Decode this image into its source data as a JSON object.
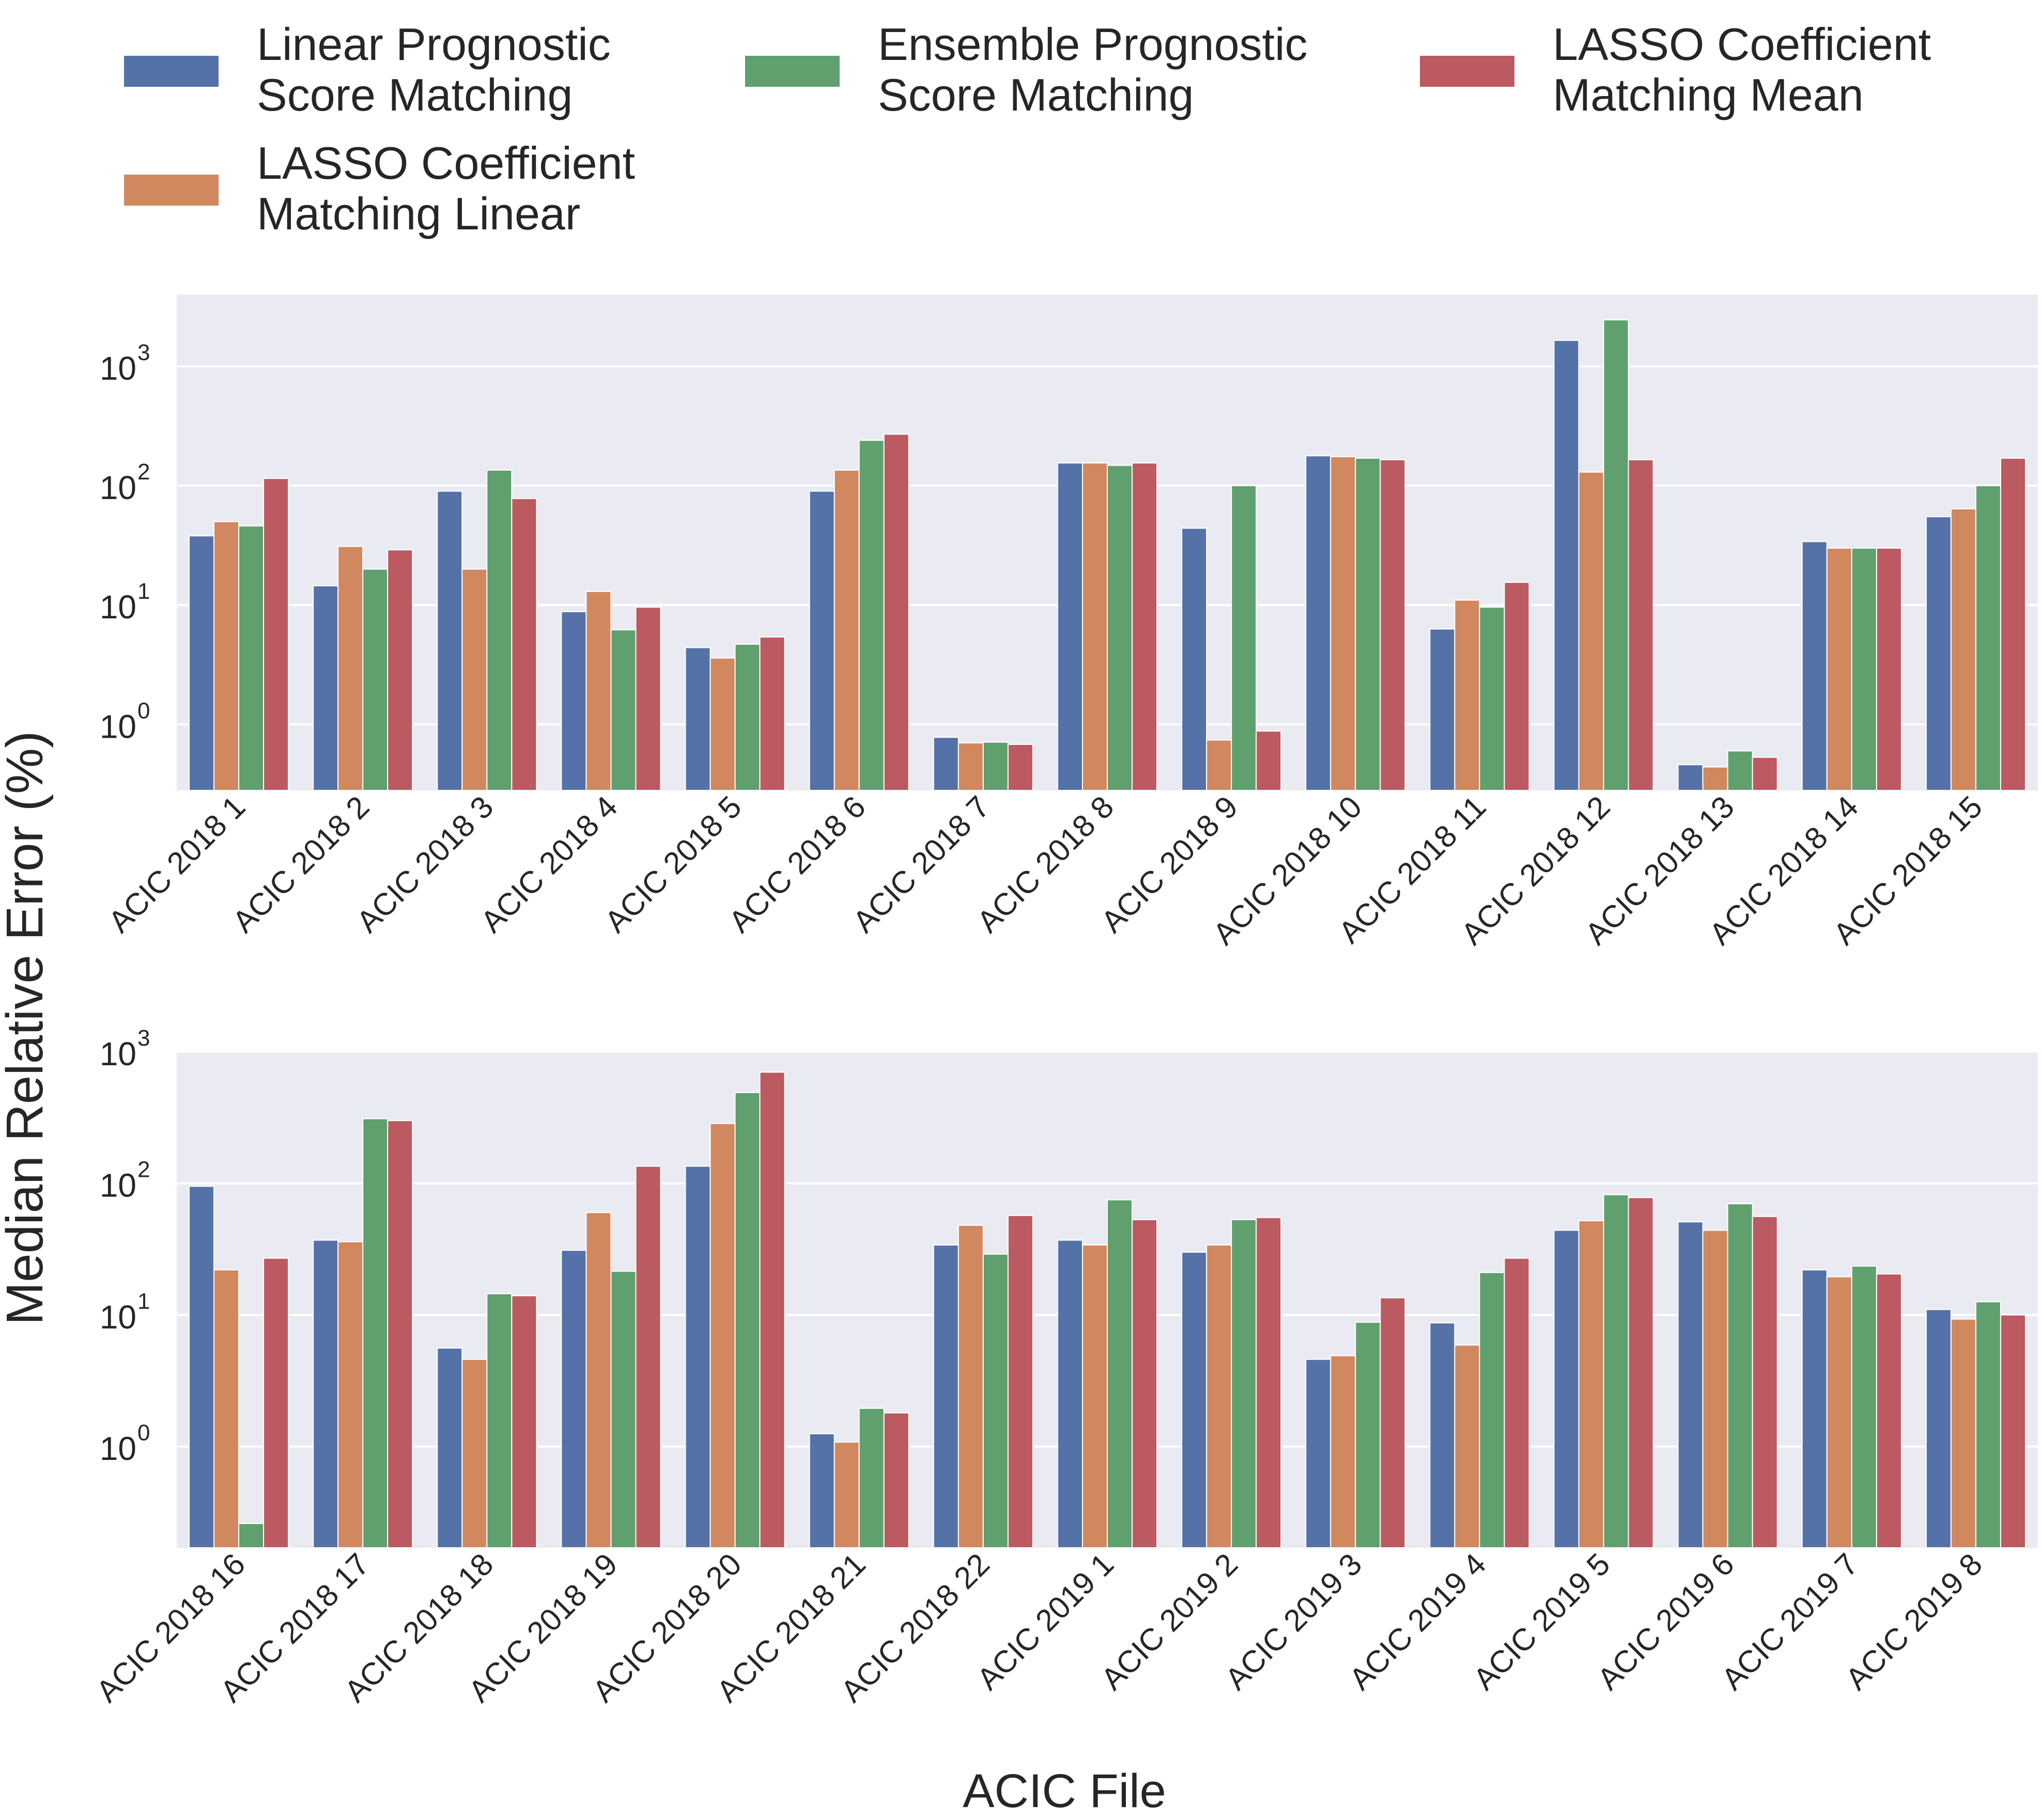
{
  "figure": {
    "ylabel": "Median Relative Error (%)",
    "xlabel": "ACIC File"
  },
  "legend": {
    "placement": "top",
    "entries": [
      {
        "lines": [
          "Linear Prognostic",
          "Score Matching"
        ],
        "color": "#5572a8"
      },
      {
        "lines": [
          "LASSO Coefficient",
          "Matching Linear"
        ],
        "color": "#d1885e"
      },
      {
        "lines": [
          "Ensemble Prognostic",
          "Score Matching"
        ],
        "color": "#5fa06e"
      },
      {
        "lines": [
          "LASSO Coefficient",
          "Matching Mean"
        ],
        "color": "#bb5a61"
      }
    ]
  },
  "chart_data": [
    {
      "type": "bar",
      "yscale": "log",
      "grid": true,
      "ylim": [
        0.28,
        4000
      ],
      "yticks": [
        {
          "exp": "0",
          "base": "10"
        },
        {
          "exp": "1",
          "base": "10"
        },
        {
          "exp": "2",
          "base": "10"
        },
        {
          "exp": "3",
          "base": "10"
        }
      ],
      "categories": [
        "ACIC 2018 1",
        "ACIC 2018 2",
        "ACIC 2018 3",
        "ACIC 2018 4",
        "ACIC 2018 5",
        "ACIC 2018 6",
        "ACIC 2018 7",
        "ACIC 2018 8",
        "ACIC 2018 9",
        "ACIC 2018 10",
        "ACIC 2018 11",
        "ACIC 2018 12",
        "ACIC 2018 13",
        "ACIC 2018 14",
        "ACIC 2018 15"
      ],
      "series": [
        {
          "name": "Linear Prognostic Score Matching",
          "color": "#5572a8",
          "values": [
            38,
            14.5,
            90,
            8.8,
            4.4,
            90,
            0.78,
            155,
            44,
            178,
            6.3,
            1650,
            0.46,
            34,
            55
          ]
        },
        {
          "name": "LASSO Coefficient Matching Linear",
          "color": "#d1885e",
          "values": [
            50,
            31,
            20,
            13,
            3.6,
            135,
            0.7,
            155,
            0.74,
            175,
            11,
            130,
            0.44,
            30,
            64
          ]
        },
        {
          "name": "Ensemble Prognostic Score Matching",
          "color": "#5fa06e",
          "values": [
            46,
            20,
            135,
            6.2,
            4.7,
            240,
            0.71,
            148,
            100,
            170,
            9.6,
            2450,
            0.6,
            30,
            100
          ]
        },
        {
          "name": "LASSO Coefficient Matching Mean",
          "color": "#bb5a61",
          "values": [
            115,
            29,
            78,
            9.6,
            5.4,
            270,
            0.68,
            155,
            0.88,
            165,
            15.5,
            165,
            0.53,
            30,
            170
          ]
        }
      ]
    },
    {
      "type": "bar",
      "yscale": "log",
      "grid": true,
      "ylim": [
        0.17,
        1000
      ],
      "yticks": [
        {
          "exp": "0",
          "base": "10"
        },
        {
          "exp": "1",
          "base": "10"
        },
        {
          "exp": "2",
          "base": "10"
        },
        {
          "exp": "3",
          "base": "10"
        }
      ],
      "categories": [
        "ACIC 2018 16",
        "ACIC 2018 17",
        "ACIC 2018 18",
        "ACIC 2018 19",
        "ACIC 2018 20",
        "ACIC 2018 21",
        "ACIC 2018 22",
        "ACIC 2019 1",
        "ACIC 2019 2",
        "ACIC 2019 3",
        "ACIC 2019 4",
        "ACIC 2019 5",
        "ACIC 2019 6",
        "ACIC 2019 7",
        "ACIC 2019 8"
      ],
      "series": [
        {
          "name": "Linear Prognostic Score Matching",
          "color": "#5572a8",
          "values": [
            95,
            37,
            5.6,
            31,
            135,
            1.25,
            34,
            37,
            30,
            4.6,
            8.7,
            44,
            51,
            22,
            11
          ]
        },
        {
          "name": "LASSO Coefficient Matching Linear",
          "color": "#d1885e",
          "values": [
            22,
            36,
            4.6,
            60,
            285,
            1.08,
            48,
            34,
            34,
            4.9,
            5.9,
            52,
            44,
            19.5,
            9.3
          ]
        },
        {
          "name": "Ensemble Prognostic Score Matching",
          "color": "#5fa06e",
          "values": [
            0.26,
            310,
            14.5,
            21.5,
            490,
            1.95,
            29,
            75,
            53,
            8.8,
            21,
            82,
            70,
            23.5,
            12.6
          ]
        },
        {
          "name": "LASSO Coefficient Matching Mean",
          "color": "#bb5a61",
          "values": [
            27,
            300,
            14,
            135,
            700,
            1.8,
            57,
            53,
            55,
            13.5,
            27,
            78,
            56,
            20.5,
            10
          ]
        }
      ]
    }
  ]
}
